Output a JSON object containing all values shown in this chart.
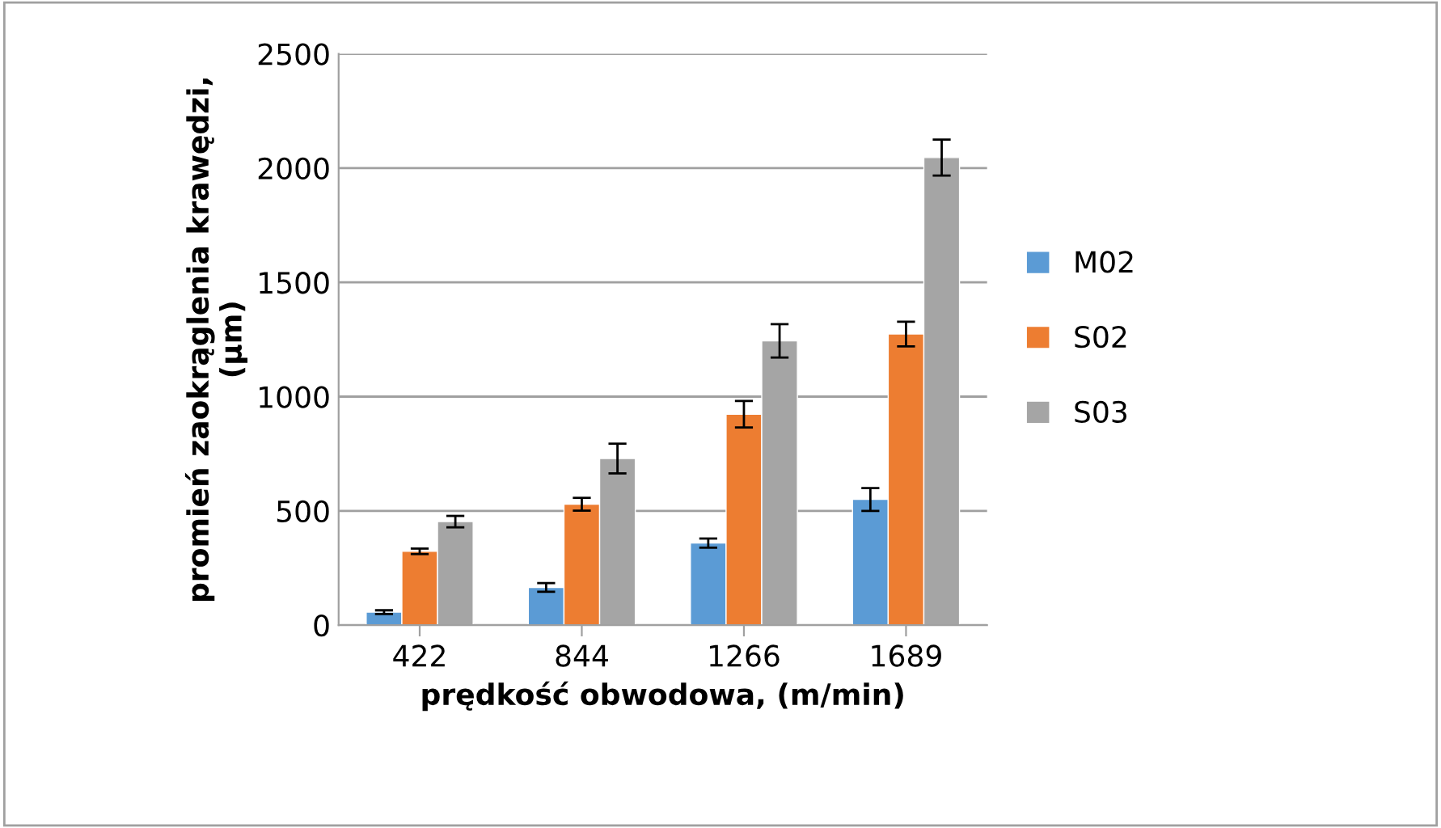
{
  "chart_data": {
    "type": "bar",
    "xlabel": "prędkość obwodowa, (m/min)",
    "ylabel": "promień zaokrąglenia krawędzi,\n(µm)",
    "categories": [
      "422",
      "844",
      "1266",
      "1689"
    ],
    "series": [
      {
        "name": "M02",
        "color": "#5b9bd5",
        "values": [
          57,
          165,
          359,
          550
        ],
        "errors": [
          8,
          19,
          20,
          50
        ]
      },
      {
        "name": "S02",
        "color": "#ed7d31",
        "values": [
          323,
          529,
          923,
          1274
        ],
        "errors": [
          12,
          28,
          58,
          54
        ]
      },
      {
        "name": "S03",
        "color": "#a5a5a5",
        "values": [
          453,
          729,
          1244,
          2046
        ],
        "errors": [
          25,
          65,
          73,
          79
        ]
      }
    ],
    "ylim": [
      0,
      2500
    ],
    "yticks": [
      0,
      500,
      1000,
      1500,
      2000,
      2500
    ],
    "grid": "y",
    "legend": "right"
  }
}
